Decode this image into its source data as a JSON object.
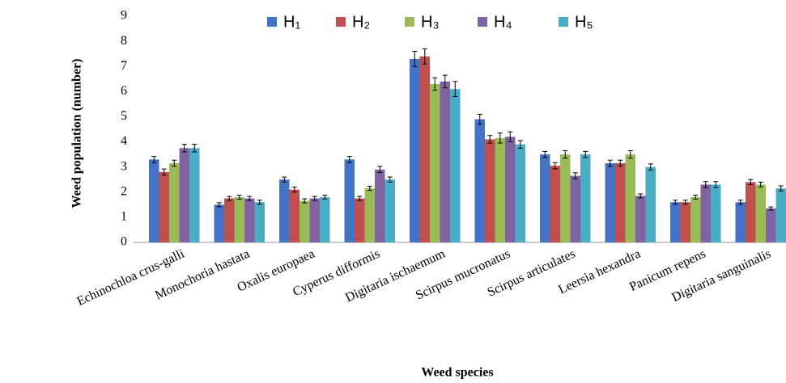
{
  "chart_data": {
    "type": "bar",
    "ylabel": "Weed population (number)",
    "xlabel": "Weed species",
    "categories": [
      "Echinochloa crus-galli",
      "Monochoria hastata",
      "Oxalis europaea",
      "Cyperus difformis",
      "Digitaria ischaemum",
      "Scirpus mucronatus",
      "Scirpus articulates",
      "Leersia hexandra",
      "Panicum repens",
      "Digitaria sanguinalis"
    ],
    "series": [
      {
        "name": "H₁",
        "color": "#4472c4",
        "values": [
          3.3,
          1.5,
          2.5,
          3.3,
          7.3,
          4.9,
          3.5,
          3.15,
          1.6,
          1.6
        ],
        "errors": [
          0.12,
          0.08,
          0.1,
          0.12,
          0.3,
          0.2,
          0.12,
          0.12,
          0.08,
          0.08
        ]
      },
      {
        "name": "H₂",
        "color": "#c0504d",
        "values": [
          2.8,
          1.75,
          2.1,
          1.75,
          7.4,
          4.1,
          3.05,
          3.15,
          1.6,
          2.4
        ],
        "errors": [
          0.12,
          0.08,
          0.1,
          0.08,
          0.3,
          0.15,
          0.12,
          0.12,
          0.08,
          0.1
        ]
      },
      {
        "name": "H₃",
        "color": "#9bbb59",
        "values": [
          3.15,
          1.8,
          1.65,
          2.15,
          6.3,
          4.15,
          3.5,
          3.5,
          1.8,
          2.3
        ],
        "errors": [
          0.12,
          0.08,
          0.08,
          0.08,
          0.25,
          0.2,
          0.15,
          0.15,
          0.08,
          0.1
        ]
      },
      {
        "name": "H₄",
        "color": "#8064a2",
        "values": [
          3.75,
          1.75,
          1.75,
          2.9,
          6.4,
          4.2,
          2.65,
          1.85,
          2.3,
          1.35
        ],
        "errors": [
          0.15,
          0.08,
          0.08,
          0.12,
          0.25,
          0.2,
          0.12,
          0.08,
          0.12,
          0.06
        ]
      },
      {
        "name": "H₅",
        "color": "#4bacc6",
        "values": [
          3.75,
          1.6,
          1.8,
          2.5,
          6.1,
          3.9,
          3.5,
          3.0,
          2.3,
          2.15
        ],
        "errors": [
          0.15,
          0.08,
          0.08,
          0.1,
          0.3,
          0.15,
          0.12,
          0.12,
          0.12,
          0.1
        ]
      }
    ],
    "ylim": [
      0,
      9
    ],
    "yticks": [
      0,
      1,
      2,
      3,
      4,
      5,
      6,
      7,
      8,
      9
    ],
    "grid": false,
    "legend": "top"
  }
}
